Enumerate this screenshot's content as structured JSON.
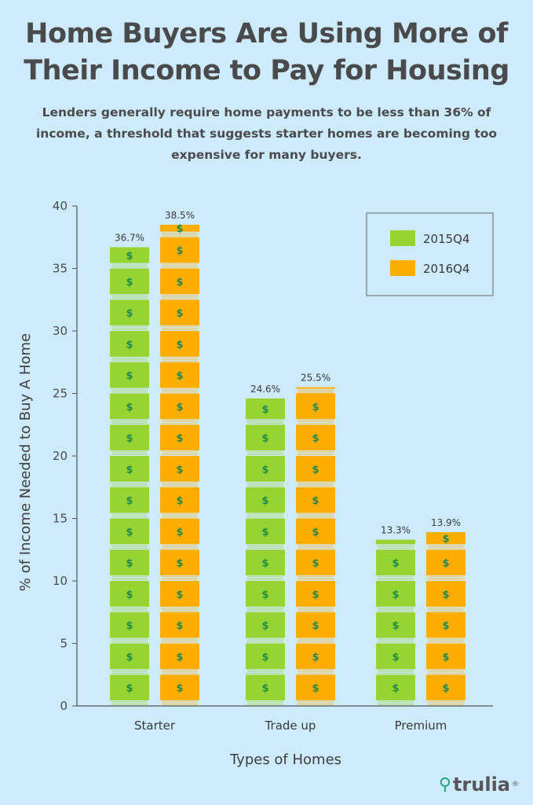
{
  "header": {
    "title_line1": "Home Buyers Are Using More of",
    "title_line2": "Their Income to Pay for Housing",
    "subtitle_line1": "Lenders generally require home payments to be less than 36% of",
    "subtitle_line2": "income, a threshold that suggests starter homes are becoming too",
    "subtitle_line3": "expensive for many buyers."
  },
  "chart_data": {
    "type": "bar",
    "categories": [
      "Starter",
      "Trade up",
      "Premium"
    ],
    "series": [
      {
        "name": "2015Q4",
        "values": [
          36.7,
          24.6,
          13.3
        ],
        "labels": [
          "36.7%",
          "24.6%",
          "13.3%"
        ],
        "color": "#96d431"
      },
      {
        "name": "2016Q4",
        "values": [
          38.5,
          25.5,
          13.9
        ],
        "labels": [
          "38.5%",
          "25.5%",
          "13.9%"
        ],
        "color": "#ffae00"
      }
    ],
    "xlabel": "Types of Homes",
    "ylabel": "% of Income Needed to Buy A Home",
    "ylim": [
      0,
      40
    ],
    "yticks": [
      "0",
      "5",
      "10",
      "15",
      "20",
      "25",
      "30",
      "35",
      "40"
    ],
    "legend_position": "top-right",
    "grid": false,
    "bar_icon": "$"
  },
  "branding": {
    "logo_text": "trulia",
    "logo_mark": "®",
    "pin_icon": "map-pin-icon"
  }
}
